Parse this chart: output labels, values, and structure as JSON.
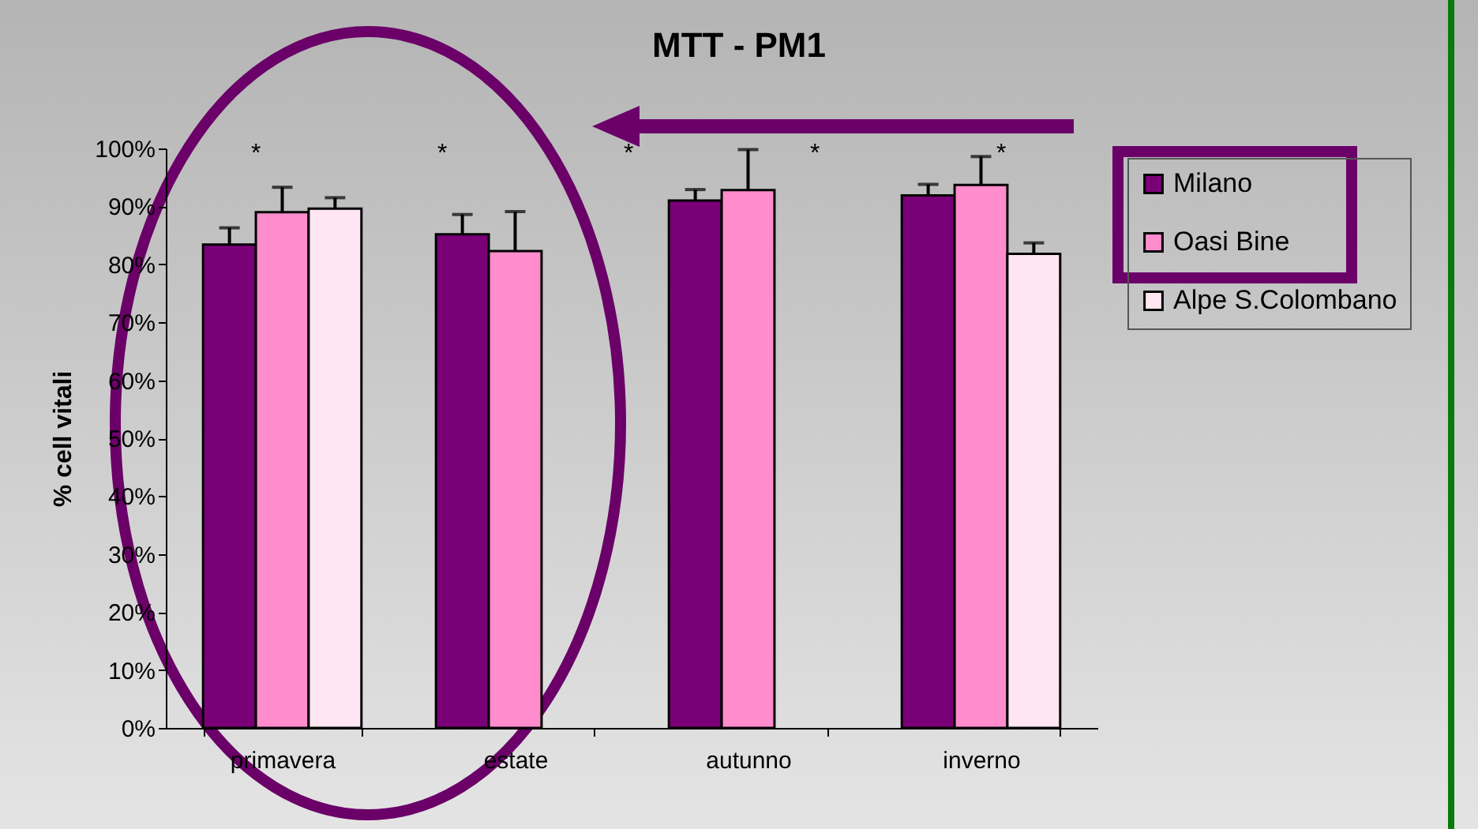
{
  "chart_data": {
    "type": "bar",
    "title": "MTT - PM1",
    "ylabel": "% cell vitali",
    "categories": [
      "primavera",
      "estate",
      "autunno",
      "inverno"
    ],
    "series": [
      {
        "name": "Milano",
        "color": "#7a0078",
        "values": [
          83.4,
          85.2,
          91.0,
          91.9
        ],
        "errors": [
          [
            83.4,
            86.3
          ],
          [
            85.2,
            88.6
          ],
          [
            91.0,
            92.9
          ],
          [
            91.9,
            93.8
          ]
        ]
      },
      {
        "name": "Oasi Bine",
        "color": "#ff8ccc",
        "values": [
          89.0,
          82.3,
          92.8,
          93.7
        ],
        "errors": [
          [
            89.0,
            93.3
          ],
          [
            82.3,
            89.1
          ],
          [
            92.8,
            99.8
          ],
          [
            93.7,
            98.6
          ]
        ]
      },
      {
        "name": "Alpe S.Colombano",
        "color": "#ffe6f2",
        "values": [
          89.6,
          0,
          null,
          81.8
        ],
        "errors": [
          [
            89.6,
            91.5
          ],
          null,
          null,
          [
            81.8,
            83.7
          ]
        ]
      }
    ],
    "ylim": [
      0,
      100
    ],
    "yticks": [
      {
        "value": 0,
        "label": "0%"
      },
      {
        "value": 10,
        "label": "10%"
      },
      {
        "value": 20,
        "label": "20%"
      },
      {
        "value": 30,
        "label": "30%"
      },
      {
        "value": 40,
        "label": "40%"
      },
      {
        "value": 50,
        "label": "50%"
      },
      {
        "value": 60,
        "label": "60%"
      },
      {
        "value": 70,
        "label": "70%"
      },
      {
        "value": 80,
        "label": "80%"
      },
      {
        "value": 90,
        "label": "90%"
      },
      {
        "value": 100,
        "label": "100%"
      }
    ],
    "annotations": [
      "*",
      "*",
      "*",
      "*",
      "*"
    ],
    "legend": "right",
    "grid": false
  }
}
